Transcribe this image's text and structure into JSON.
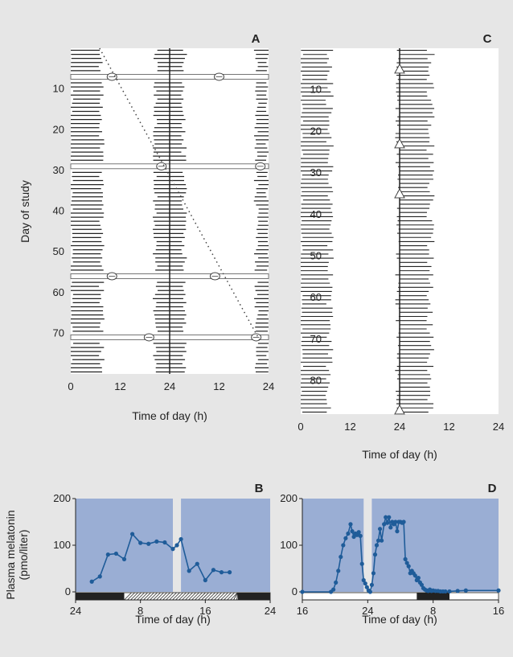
{
  "colors": {
    "background": "#e6e6e6",
    "plot_bg": "#ffffff",
    "shade": "#9aaed4",
    "line": "#1f5c99",
    "bar": "#222222"
  },
  "chart_data": [
    {
      "panel": "A",
      "type": "actogram",
      "xlabel": "Time of day (h)",
      "ylabel": "Day of study",
      "x_ticks": [
        "0",
        "12",
        "24",
        "12",
        "24"
      ],
      "y_ticks": [
        "10",
        "20",
        "30",
        "40",
        "50",
        "60",
        "70"
      ],
      "days": 80,
      "activity_per_day_hours": [
        [
          0,
          7.5
        ],
        [
          20.5,
          27.5
        ],
        [
          45,
          48
        ]
      ],
      "tau_line": {
        "start": {
          "day": 0,
          "hour": 7
        },
        "end": {
          "day": 72,
          "hour": 46
        }
      },
      "episodes": [
        {
          "day": 7,
          "from": 0,
          "to": 48,
          "marker_hour": 10,
          "marker2_hour": 36
        },
        {
          "day": 29,
          "from": 0,
          "to": 48,
          "marker_hour": 22,
          "marker2_hour": 46
        },
        {
          "day": 56,
          "from": 0,
          "to": 48,
          "marker_hour": 10,
          "marker2_hour": 35
        },
        {
          "day": 71,
          "from": 0,
          "to": 48,
          "marker_hour": 19,
          "marker2_hour": 45
        }
      ]
    },
    {
      "panel": "B",
      "type": "line",
      "xlabel": "Time of day (h)",
      "ylabel": "Plasma melatonin (pmo/liter)",
      "x_ticks": [
        "24",
        "8",
        "16",
        "24"
      ],
      "y_ticks": [
        "0",
        "100",
        "200"
      ],
      "xlim": [
        0,
        24
      ],
      "ylim": [
        0,
        200
      ],
      "x": [
        2,
        3,
        4,
        5,
        6,
        7,
        8,
        9,
        10,
        11,
        12,
        12.5,
        13,
        14,
        15,
        16,
        17,
        18,
        19
      ],
      "values": [
        22,
        33,
        80,
        82,
        70,
        124,
        105,
        103,
        108,
        106,
        92,
        100,
        113,
        45,
        60,
        25,
        47,
        42,
        42
      ],
      "light_gap_hours": [
        12,
        13
      ],
      "light_dark_bar": [
        {
          "from": 0,
          "to": 6,
          "kind": "dark"
        },
        {
          "from": 6,
          "to": 20,
          "kind": "hatched"
        },
        {
          "from": 20,
          "to": 24,
          "kind": "dark"
        }
      ]
    },
    {
      "panel": "C",
      "type": "actogram",
      "xlabel": "Time of day (h)",
      "x_ticks": [
        "0",
        "12",
        "24",
        "12",
        "24"
      ],
      "y_ticks": [
        "10",
        "20",
        "30",
        "40",
        "50",
        "60",
        "70",
        "80"
      ],
      "days": 88,
      "activity_per_day_hours": [
        [
          0,
          7
        ],
        [
          23.5,
          31.5
        ]
      ],
      "markers_days": [
        5,
        23,
        35,
        87
      ]
    },
    {
      "panel": "D",
      "type": "line",
      "xlabel": "Time of day (h)",
      "x_ticks": [
        "16",
        "24",
        "8",
        "16"
      ],
      "y_ticks": [
        "0",
        "100",
        "200"
      ],
      "xlim": [
        0,
        24
      ],
      "ylim": [
        0,
        200
      ],
      "x": [
        0,
        3.5,
        3.8,
        4.1,
        4.4,
        4.7,
        5.0,
        5.3,
        5.6,
        5.9,
        6.1,
        6.3,
        6.5,
        6.7,
        6.9,
        7.1,
        7.3,
        7.5,
        7.7,
        7.9,
        8.1,
        8.3,
        8.5,
        8.7,
        8.9,
        9.1,
        9.3,
        9.5,
        9.7,
        10.0,
        10.2,
        10.4,
        10.6,
        10.8,
        11.0,
        11.2,
        11.4,
        11.6,
        11.8,
        12.0,
        12.2,
        12.4,
        12.6,
        12.8,
        13.0,
        13.2,
        13.4,
        13.6,
        13.8,
        14.0,
        14.2,
        14.4,
        14.6,
        14.8,
        15.0,
        15.2,
        15.4,
        15.6,
        15.8,
        16.0,
        16.3,
        16.6,
        16.9,
        17.2,
        17.5,
        18,
        19,
        20,
        24
      ],
      "values": [
        0,
        0,
        5,
        20,
        45,
        75,
        100,
        115,
        125,
        145,
        130,
        118,
        125,
        122,
        128,
        120,
        60,
        25,
        18,
        10,
        3,
        0,
        15,
        40,
        80,
        100,
        110,
        135,
        110,
        145,
        160,
        148,
        160,
        138,
        150,
        145,
        150,
        130,
        150,
        150,
        148,
        150,
        70,
        62,
        55,
        40,
        45,
        40,
        35,
        25,
        30,
        20,
        15,
        8,
        5,
        3,
        2,
        5,
        2,
        3,
        2,
        2,
        1,
        1,
        1,
        1,
        2,
        3,
        3
      ],
      "light_gap_hours": [
        7.5,
        8.5
      ],
      "light_dark_bar": [
        {
          "from": 14,
          "to": 18,
          "kind": "dark"
        }
      ]
    }
  ],
  "labels": {
    "A": "A",
    "B": "B",
    "C": "C",
    "D": "D",
    "axis": "Time of day (h)",
    "day_of_study": "Day of study",
    "melatonin_line1": "Plasma melatonin",
    "melatonin_line2": "(pmo/liter)"
  }
}
